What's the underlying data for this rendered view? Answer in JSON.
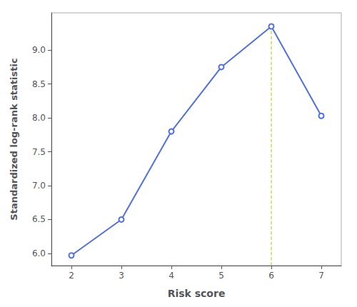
{
  "chart_data": {
    "type": "line",
    "x": [
      2,
      3,
      4,
      5,
      6,
      7
    ],
    "values": [
      5.97,
      6.5,
      7.8,
      8.75,
      9.35,
      8.03
    ],
    "marker": "open_circle",
    "xlabel": "Risk score",
    "ylabel": "Standardized log-rank statistic",
    "xlim": [
      1.6,
      7.4
    ],
    "ylim": [
      5.82,
      9.55
    ],
    "xticks": [
      2,
      3,
      4,
      5,
      6,
      7
    ],
    "yticks": [
      {
        "value": 6.0,
        "label": "6.0"
      },
      6.5,
      {
        "value": 7.0,
        "label": "7.0"
      },
      7.5,
      {
        "value": 8.0,
        "label": "8.0"
      },
      8.5,
      {
        "value": 9.0,
        "label": "9.0"
      }
    ],
    "cutoff": {
      "x": 6,
      "y": 9.35,
      "line_style": "dashed"
    },
    "grid": false
  }
}
